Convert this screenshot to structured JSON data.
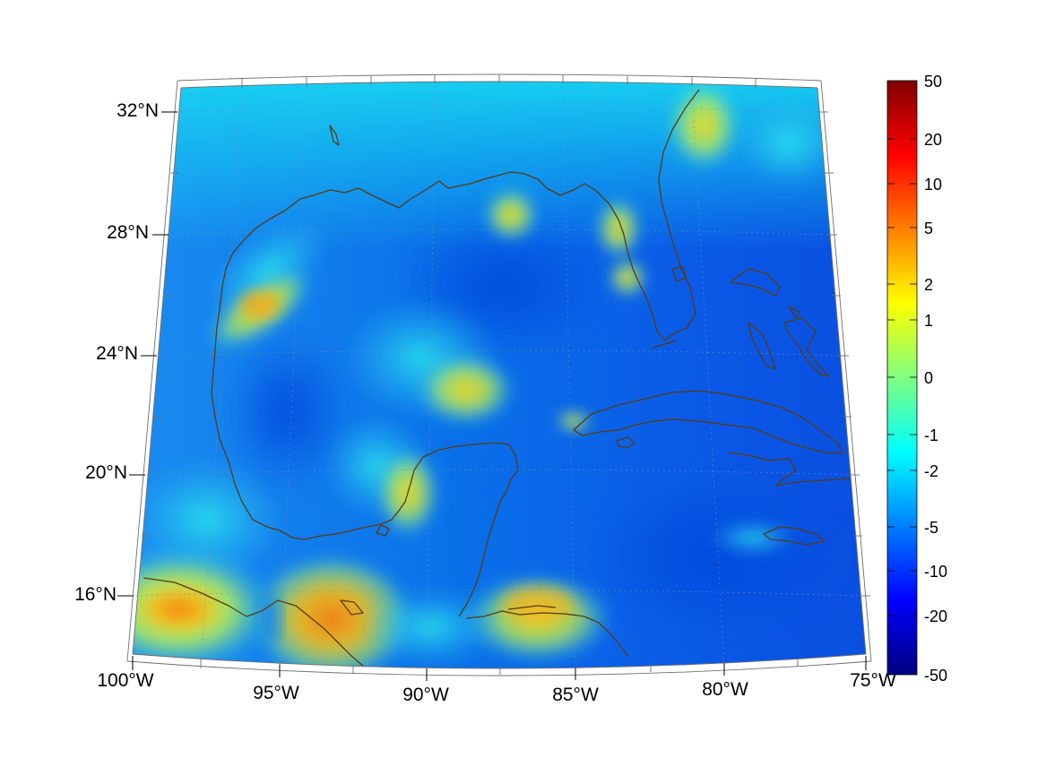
{
  "figure": {
    "lat_labels": [
      "32°N",
      "28°N",
      "24°N",
      "20°N",
      "16°N"
    ],
    "lon_labels": [
      "100°W",
      "95°W",
      "90°W",
      "85°W",
      "80°W",
      "75°W"
    ]
  },
  "colorbar": {
    "tick_labels": [
      "50",
      "20",
      "10",
      "5",
      "2",
      "1",
      "0",
      "-1",
      "-2",
      "-5",
      "-10",
      "-20",
      "-50"
    ],
    "colors": [
      "#00007f",
      "#0000ff",
      "#007fff",
      "#00ffff",
      "#7fff7f",
      "#ffff00",
      "#ff7f00",
      "#ff0000",
      "#7f0000"
    ]
  },
  "map_colors": {
    "coast": "#5a3a12",
    "sea_base": "#0a64f0",
    "high_anomaly": "#f2d11a",
    "peak_anomaly": "#f07a10"
  }
}
